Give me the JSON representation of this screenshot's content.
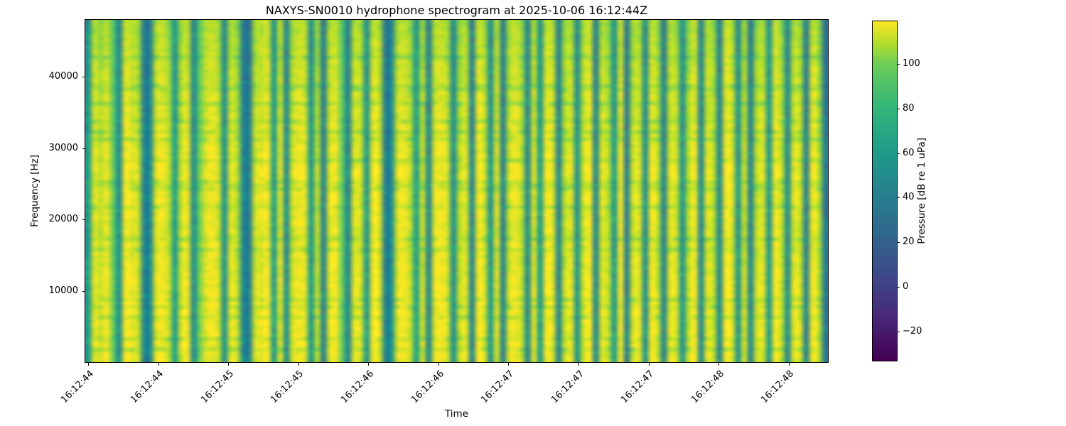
{
  "chart_data": {
    "type": "heatmap",
    "title": "NAXYS-SN0010 hydrophone spectrogram at 2025-10-06 16:12:44Z",
    "xlabel": "Time",
    "ylabel": "Frequency [Hz]",
    "x_tick_labels": [
      "16:12:44",
      "16:12:44",
      "16:12:45",
      "16:12:45",
      "16:12:46",
      "16:12:46",
      "16:12:47",
      "16:12:47",
      "16:12:47",
      "16:12:48",
      "16:12:48"
    ],
    "y_tick_values": [
      10000,
      20000,
      30000,
      40000
    ],
    "freq_range_hz": [
      0,
      48000
    ],
    "colormap": "viridis",
    "colorbar": {
      "label": "Pressure [dB re 1 uPa]",
      "tick_values": [
        100,
        80,
        60,
        40,
        20,
        0,
        -20
      ],
      "vmin": -33,
      "vmax": 119
    },
    "time_bins": 120,
    "column_levels_db": [
      58,
      112,
      108,
      114,
      96,
      48,
      115,
      113,
      110,
      42,
      45,
      112,
      115,
      108,
      60,
      110,
      114,
      48,
      98,
      112,
      115,
      110,
      52,
      112,
      108,
      44,
      38,
      110,
      113,
      115,
      58,
      112,
      46,
      110,
      115,
      112,
      54,
      108,
      40,
      112,
      115,
      96,
      44,
      112,
      110,
      56,
      115,
      112,
      38,
      48,
      112,
      115,
      108,
      60,
      110,
      42,
      112,
      115,
      110,
      50,
      108,
      112,
      44,
      115,
      110,
      54,
      112,
      40,
      110,
      115,
      108,
      46,
      112,
      58,
      115,
      112,
      42,
      108,
      112,
      52,
      110,
      115,
      44,
      112,
      108,
      56,
      115,
      38,
      110,
      112,
      50,
      115,
      108,
      42,
      112,
      110,
      54,
      108,
      115,
      46,
      112,
      108,
      44,
      115,
      112,
      52,
      110,
      42,
      108,
      112,
      56,
      115,
      108,
      48,
      112,
      110,
      40,
      115,
      108,
      36
    ],
    "row_profile_db": [
      3,
      4,
      4,
      3,
      2,
      3,
      4,
      2,
      1,
      0,
      -2,
      -4
    ]
  }
}
